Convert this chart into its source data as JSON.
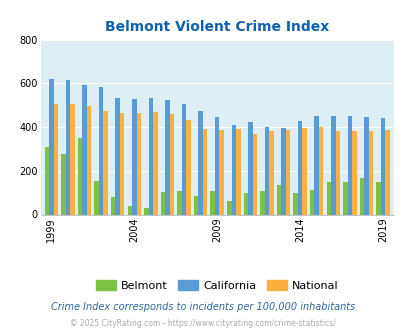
{
  "title": "Belmont Violent Crime Index",
  "subtitle": "Crime Index corresponds to incidents per 100,000 inhabitants",
  "footer": "© 2025 CityRating.com - https://www.cityrating.com/crime-statistics/",
  "years": [
    1999,
    2000,
    2001,
    2002,
    2003,
    2004,
    2005,
    2006,
    2007,
    2008,
    2009,
    2010,
    2011,
    2012,
    2013,
    2014,
    2015,
    2016,
    2017,
    2018,
    2019
  ],
  "belmont": [
    308,
    275,
    348,
    152,
    80,
    40,
    28,
    105,
    108,
    85,
    108,
    63,
    97,
    108,
    136,
    100,
    113,
    148,
    148,
    168,
    148
  ],
  "california": [
    620,
    617,
    594,
    584,
    532,
    528,
    534,
    526,
    505,
    472,
    445,
    411,
    421,
    399,
    396,
    426,
    449,
    449,
    449,
    444,
    443
  ],
  "national": [
    507,
    506,
    498,
    472,
    463,
    465,
    470,
    460,
    430,
    390,
    385,
    391,
    369,
    382,
    387,
    396,
    399,
    383,
    383,
    383,
    388
  ],
  "xtick_years": [
    1999,
    2004,
    2009,
    2014,
    2019
  ],
  "colors": {
    "belmont": "#7dc242",
    "california": "#5b9bd5",
    "national": "#fbb040",
    "background": "#deeef5",
    "title": "#1060b0",
    "subtitle": "#336699",
    "footer": "#aaaaaa"
  },
  "ylim": [
    0,
    800
  ],
  "yticks": [
    0,
    200,
    400,
    600,
    800
  ]
}
